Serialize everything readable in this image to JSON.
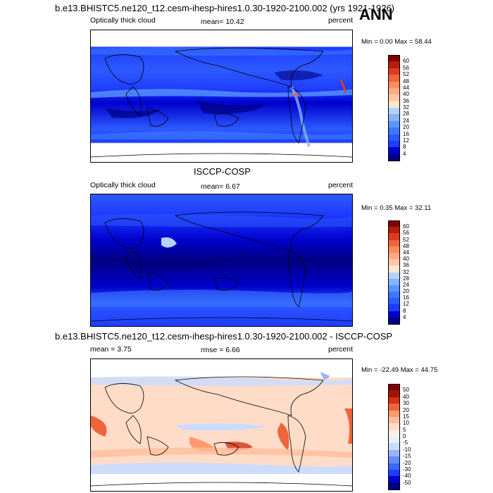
{
  "season": "ANN",
  "panel1": {
    "title": "b.e13.BHISTC5.ne120_t12.cesm-ihesp-hires1.0.30-1920-2100.002 (yrs 1921-1926)",
    "left_label": "Optically thick cloud",
    "mean_label": "mean=  10.42",
    "units": "percent",
    "minmax": "Min =   0.00 Max =  58.44",
    "colorbar_labels": [
      "60",
      "56",
      "52",
      "48",
      "44",
      "40",
      "36",
      "32",
      "28",
      "24",
      "20",
      "16",
      "12",
      "8",
      "4"
    ]
  },
  "panel2": {
    "title": "ISCCP-COSP",
    "left_label": "Optically thick cloud",
    "mean_label": "mean=   6.67",
    "units": "percent",
    "minmax": "Min =   0.35 Max =  32.11",
    "colorbar_labels": [
      "60",
      "56",
      "52",
      "48",
      "44",
      "40",
      "36",
      "32",
      "28",
      "24",
      "20",
      "16",
      "12",
      "8",
      "4"
    ]
  },
  "panel3": {
    "title": "b.e13.BHISTC5.ne120_t12.cesm-ihesp-hires1.0.30-1920-2100.002 - ISCCP-COSP",
    "mean_label": "mean =   3.75",
    "rmse_label": "rmse =   6.66",
    "units": "percent",
    "minmax": "Min = -22.49 Max =  44.75",
    "colorbar_labels": [
      "50",
      "40",
      "30",
      "20",
      "15",
      "10",
      "5",
      "0",
      "-5",
      "-10",
      "-15",
      "-20",
      "-30",
      "-40",
      "-50"
    ]
  },
  "colors": {
    "abs_scale": [
      "#000080",
      "#0000cd",
      "#1e3cff",
      "#2d5aff",
      "#3c78ff",
      "#5a96ff",
      "#82b4ff",
      "#b4d2ff",
      "#ffe6d2",
      "#ffc8aa",
      "#ffaa82",
      "#ff8c5a",
      "#f0643c",
      "#dc3c1e",
      "#b41e0a",
      "#800000"
    ],
    "diff_scale": [
      "#000080",
      "#0000cd",
      "#1e3cff",
      "#3c64ff",
      "#648cff",
      "#96b4ff",
      "#c8dcff",
      "#e6f0ff",
      "#fff0e6",
      "#ffdcc8",
      "#ffbe9b",
      "#ff9b6e",
      "#f0643c",
      "#d23214",
      "#a01400",
      "#800000"
    ]
  }
}
